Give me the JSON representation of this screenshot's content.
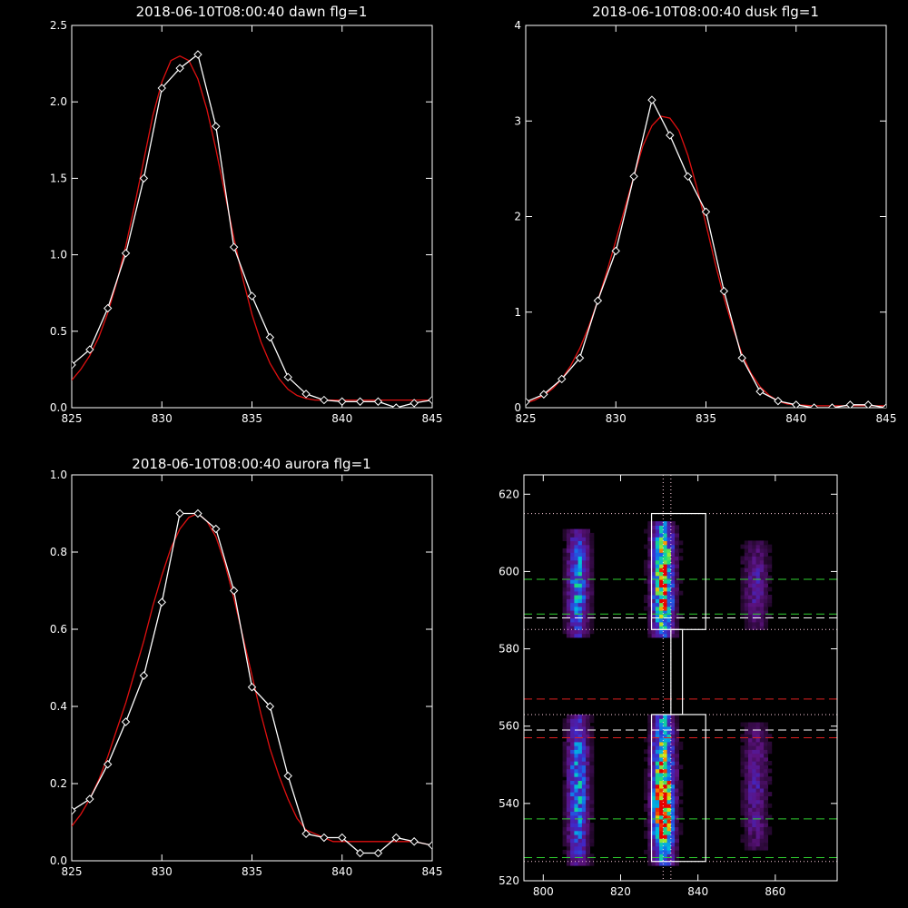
{
  "chart_data": [
    {
      "type": "line",
      "title": "2018-06-10T08:00:40 dawn flg=1",
      "xlim": [
        825,
        845
      ],
      "ylim": [
        0,
        2.5
      ],
      "xticks": [
        825,
        830,
        835,
        840,
        845
      ],
      "xtick_labels": [
        "825",
        "830",
        "835",
        "840",
        "845"
      ],
      "yticks": [
        0.0,
        0.5,
        1.0,
        1.5,
        2.0,
        2.5
      ],
      "ytick_labels": [
        "0.0",
        "0.5",
        "1.0",
        "1.5",
        "2.0",
        "2.5"
      ],
      "series": [
        {
          "kind": "observed",
          "color": "#ffffff",
          "marker": "diamond",
          "x": [
            825,
            826,
            827,
            828,
            829,
            830,
            831,
            832,
            833,
            834,
            835,
            836,
            837,
            838,
            839,
            840,
            841,
            842,
            843,
            844,
            845
          ],
          "y": [
            0.28,
            0.38,
            0.65,
            1.01,
            1.5,
            2.09,
            2.22,
            2.31,
            1.84,
            1.05,
            0.73,
            0.46,
            0.2,
            0.09,
            0.05,
            0.04,
            0.04,
            0.04,
            0.0,
            0.03,
            0.05
          ]
        },
        {
          "kind": "fit",
          "color": "#e01010",
          "x": [
            825,
            825.5,
            826,
            826.5,
            827,
            827.5,
            828,
            828.5,
            829,
            829.5,
            830,
            830.5,
            831,
            831.5,
            832,
            832.5,
            833,
            833.5,
            834,
            834.5,
            835,
            835.5,
            836,
            836.5,
            837,
            837.5,
            838,
            838.5,
            839,
            839.5,
            840,
            841,
            842,
            843,
            844,
            845
          ],
          "y": [
            0.18,
            0.25,
            0.34,
            0.46,
            0.62,
            0.82,
            1.06,
            1.33,
            1.62,
            1.91,
            2.13,
            2.27,
            2.3,
            2.27,
            2.15,
            1.95,
            1.69,
            1.4,
            1.11,
            0.84,
            0.61,
            0.43,
            0.29,
            0.19,
            0.12,
            0.08,
            0.06,
            0.05,
            0.05,
            0.05,
            0.05,
            0.05,
            0.05,
            0.05,
            0.05,
            0.05
          ]
        }
      ]
    },
    {
      "type": "line",
      "title": "2018-06-10T08:00:40 dusk flg=1",
      "xlim": [
        825,
        845
      ],
      "ylim": [
        0,
        4
      ],
      "xticks": [
        825,
        830,
        835,
        840,
        845
      ],
      "xtick_labels": [
        "825",
        "830",
        "835",
        "840",
        "845"
      ],
      "yticks": [
        0,
        1,
        2,
        3,
        4
      ],
      "ytick_labels": [
        "0",
        "1",
        "2",
        "3",
        "4"
      ],
      "series": [
        {
          "kind": "observed",
          "color": "#ffffff",
          "marker": "diamond",
          "x": [
            825,
            826,
            827,
            828,
            829,
            830,
            831,
            832,
            833,
            834,
            835,
            836,
            837,
            838,
            839,
            840,
            841,
            842,
            843,
            844,
            845
          ],
          "y": [
            0.06,
            0.14,
            0.3,
            0.52,
            1.12,
            1.64,
            2.42,
            3.22,
            2.85,
            2.42,
            2.05,
            1.22,
            0.52,
            0.17,
            0.07,
            0.03,
            0.0,
            0.0,
            0.03,
            0.03,
            0.0
          ]
        },
        {
          "kind": "fit",
          "color": "#e01010",
          "x": [
            825,
            825.5,
            826,
            826.5,
            827,
            827.5,
            828,
            828.5,
            829,
            829.5,
            830,
            830.5,
            831,
            831.5,
            832,
            832.5,
            833,
            833.5,
            834,
            834.5,
            835,
            835.5,
            836,
            836.5,
            837,
            837.5,
            838,
            838.5,
            839,
            839.5,
            840,
            841,
            842,
            843,
            844,
            845
          ],
          "y": [
            0.05,
            0.08,
            0.13,
            0.2,
            0.3,
            0.44,
            0.62,
            0.85,
            1.12,
            1.42,
            1.75,
            2.09,
            2.42,
            2.74,
            2.95,
            3.05,
            3.03,
            2.9,
            2.64,
            2.3,
            1.92,
            1.52,
            1.15,
            0.83,
            0.56,
            0.36,
            0.22,
            0.13,
            0.07,
            0.04,
            0.03,
            0.02,
            0.02,
            0.02,
            0.02,
            0.02
          ]
        }
      ]
    },
    {
      "type": "line",
      "title": "2018-06-10T08:00:40 aurora flg=1",
      "xlim": [
        825,
        845
      ],
      "ylim": [
        0,
        1.0
      ],
      "xticks": [
        825,
        830,
        835,
        840,
        845
      ],
      "xtick_labels": [
        "825",
        "830",
        "835",
        "840",
        "845"
      ],
      "yticks": [
        0.0,
        0.2,
        0.4,
        0.6,
        0.8,
        1.0
      ],
      "ytick_labels": [
        "0.0",
        "0.2",
        "0.4",
        "0.6",
        "0.8",
        "1.0"
      ],
      "series": [
        {
          "kind": "observed",
          "color": "#ffffff",
          "marker": "diamond",
          "x": [
            825,
            826,
            827,
            828,
            829,
            830,
            831,
            832,
            833,
            834,
            835,
            836,
            837,
            838,
            839,
            840,
            841,
            842,
            843,
            844,
            845
          ],
          "y": [
            0.13,
            0.16,
            0.25,
            0.36,
            0.48,
            0.67,
            0.9,
            0.9,
            0.86,
            0.7,
            0.45,
            0.4,
            0.22,
            0.07,
            0.06,
            0.06,
            0.02,
            0.02,
            0.06,
            0.05,
            0.04
          ]
        },
        {
          "kind": "fit",
          "color": "#e01010",
          "x": [
            825,
            825.5,
            826,
            826.5,
            827,
            827.5,
            828,
            828.5,
            829,
            829.5,
            830,
            830.5,
            831,
            831.5,
            832,
            832.5,
            833,
            833.5,
            834,
            834.5,
            835,
            835.5,
            836,
            836.5,
            837,
            837.5,
            838,
            838.5,
            839,
            839.5,
            840,
            841,
            842,
            843,
            844,
            845
          ],
          "y": [
            0.09,
            0.12,
            0.16,
            0.21,
            0.27,
            0.34,
            0.41,
            0.49,
            0.57,
            0.66,
            0.74,
            0.81,
            0.86,
            0.89,
            0.9,
            0.88,
            0.84,
            0.77,
            0.68,
            0.58,
            0.48,
            0.38,
            0.29,
            0.22,
            0.16,
            0.11,
            0.08,
            0.07,
            0.06,
            0.05,
            0.05,
            0.05,
            0.05,
            0.05,
            0.05,
            0.04
          ]
        }
      ]
    },
    {
      "type": "heatmap",
      "title": "",
      "xlim": [
        795,
        876
      ],
      "ylim": [
        520,
        625
      ],
      "xticks": [
        800,
        820,
        840,
        860
      ],
      "xtick_labels": [
        "800",
        "820",
        "840",
        "860"
      ],
      "yticks": [
        520,
        540,
        560,
        580,
        600,
        620
      ],
      "ytick_labels": [
        "520",
        "540",
        "560",
        "580",
        "600",
        "620"
      ],
      "emission_columns": [
        {
          "x_center": 809,
          "x_width": 6,
          "y_ranges": [
            [
              583,
              610
            ],
            [
              524,
              562
            ]
          ],
          "intensity": 0.62
        },
        {
          "x_center": 831,
          "x_width": 6,
          "y_ranges": [
            [
              583,
              612
            ],
            [
              524,
              562
            ]
          ],
          "intensity": 1.0
        },
        {
          "x_center": 855,
          "x_width": 7,
          "y_ranges": [
            [
              585,
              607
            ],
            [
              528,
              560
            ]
          ],
          "intensity": 0.32
        }
      ],
      "boxes": [
        {
          "color": "#ffffff",
          "x": [
            828,
            842
          ],
          "y": [
            585,
            615
          ]
        },
        {
          "color": "#ffffff",
          "x": [
            828,
            842
          ],
          "y": [
            525,
            563
          ]
        },
        {
          "color": "#ffffff",
          "x": [
            833,
            836
          ],
          "y": [
            563,
            585
          ]
        }
      ],
      "dashed_lines": [
        {
          "color": "#30d030",
          "y": 598
        },
        {
          "color": "#30d030",
          "y": 589
        },
        {
          "color": "#ffffff",
          "y": 588
        },
        {
          "color": "#e02020",
          "y": 567
        },
        {
          "color": "#ffffff",
          "y": 559
        },
        {
          "color": "#e02020",
          "y": 557
        },
        {
          "color": "#30d030",
          "y": 536
        },
        {
          "color": "#30d030",
          "y": 526
        }
      ],
      "dotted_lines": [
        {
          "color": "#ffd0e0",
          "orientation": "h",
          "value": 615
        },
        {
          "color": "#ffd0e0",
          "orientation": "h",
          "value": 585
        },
        {
          "color": "#ffd0e0",
          "orientation": "h",
          "value": 563
        },
        {
          "color": "#ffd0e0",
          "orientation": "h",
          "value": 525
        },
        {
          "color": "#ffd0e0",
          "orientation": "v",
          "value": 831
        },
        {
          "color": "#ffd0e0",
          "orientation": "v",
          "value": 833
        }
      ]
    }
  ]
}
